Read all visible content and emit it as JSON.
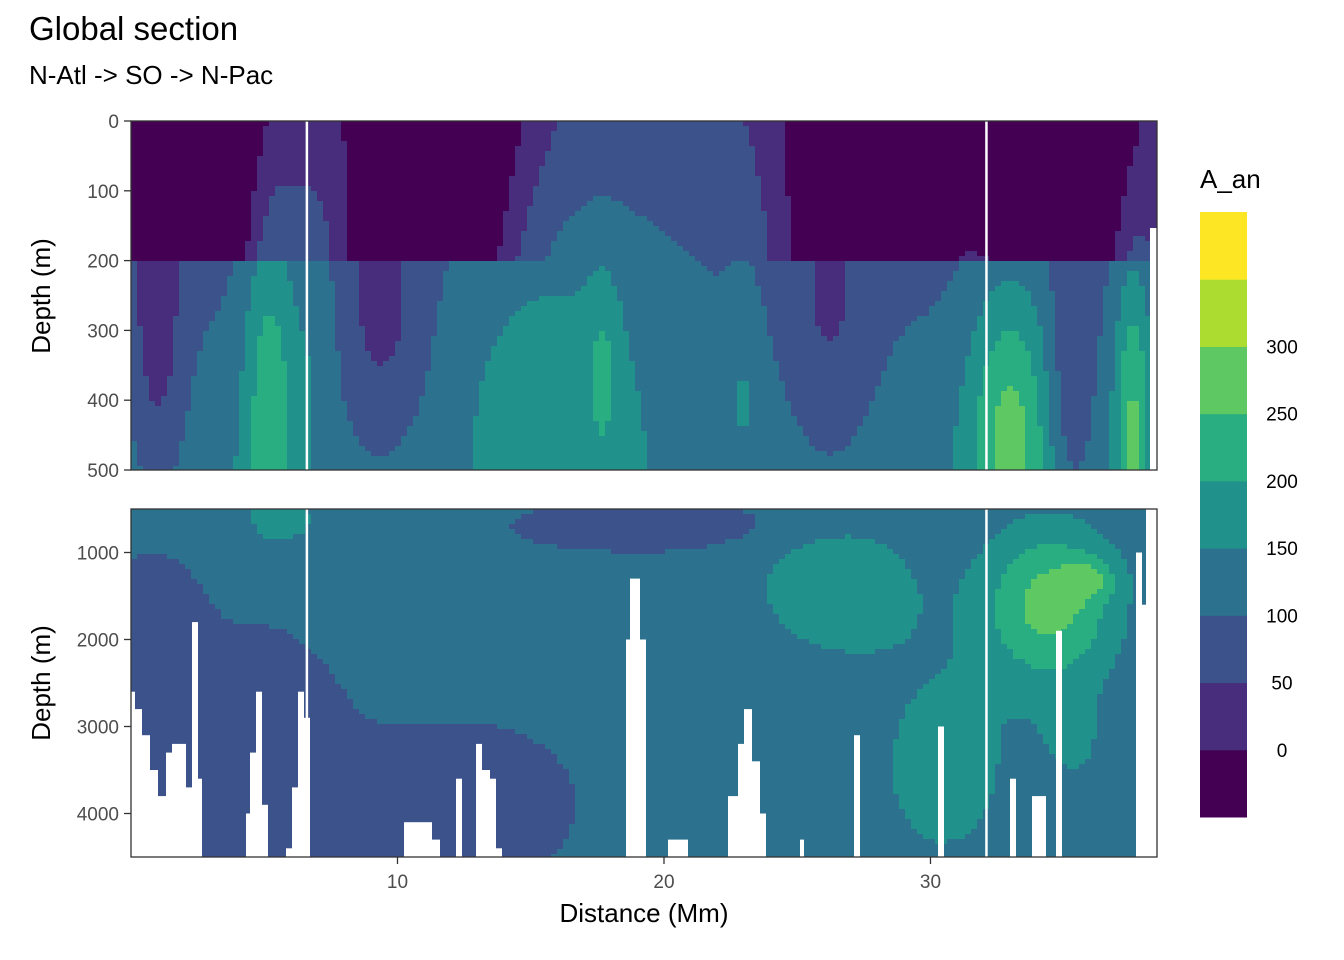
{
  "chart_data": {
    "type": "heatmap",
    "title": "Global section",
    "subtitle": "N-Atl -> SO -> N-Pac",
    "xlabel": "Distance (Mm)",
    "ylabel": "Depth (m)",
    "xlim": [
      0,
      38.5
    ],
    "x_ticks": [
      "10",
      "20",
      "30"
    ],
    "x_tick_values": [
      10,
      20,
      30
    ],
    "grid": true,
    "legend": {
      "title": "A_an",
      "position": "right",
      "labels": [
        "0",
        "50",
        "100",
        "150",
        "200",
        "250",
        "300"
      ],
      "bins": [
        {
          "from": -50,
          "to": 0,
          "color": "#440154"
        },
        {
          "from": 0,
          "to": 50,
          "color": "#472d7b"
        },
        {
          "from": 50,
          "to": 100,
          "color": "#3b528b"
        },
        {
          "from": 100,
          "to": 150,
          "color": "#2c728e"
        },
        {
          "from": 150,
          "to": 200,
          "color": "#21918c"
        },
        {
          "from": 200,
          "to": 250,
          "color": "#28ae80"
        },
        {
          "from": 250,
          "to": 300,
          "color": "#5ec962"
        },
        {
          "from": 300,
          "to": 350,
          "color": "#addc30"
        },
        {
          "from": 350,
          "to": 400,
          "color": "#fde725"
        }
      ]
    },
    "panels": [
      {
        "name": "upper",
        "ylim": [
          0,
          500
        ],
        "y_ticks": [
          "0",
          "100",
          "200",
          "300",
          "400",
          "500"
        ],
        "y_tick_values": [
          0,
          100,
          200,
          300,
          400,
          500
        ]
      },
      {
        "name": "lower",
        "ylim": [
          500,
          4500
        ],
        "y_ticks": [
          "1000",
          "2000",
          "3000",
          "4000"
        ],
        "y_tick_values": [
          1000,
          2000,
          3000,
          4000
        ]
      }
    ],
    "station_gaps_x": [
      6.6,
      32.1
    ]
  }
}
